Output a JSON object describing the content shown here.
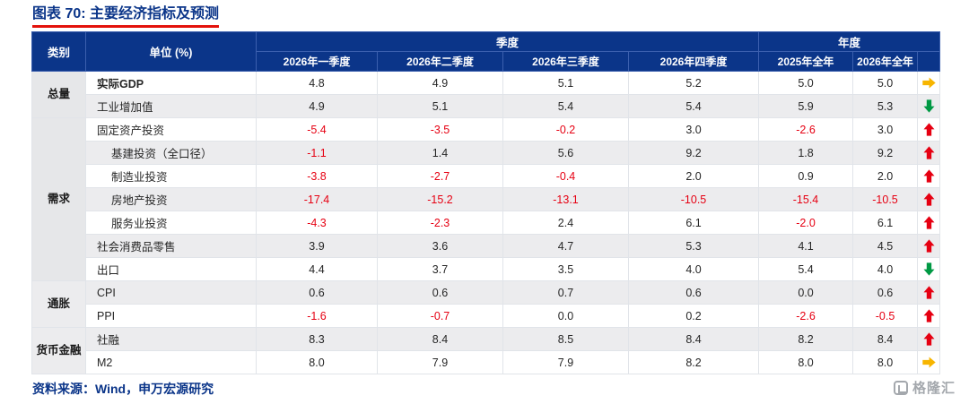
{
  "title": "图表 70: 主要经济指标及预测",
  "chart_data": {
    "type": "table",
    "header": {
      "category": "类别",
      "unit": "单位 (%)",
      "quarter_group": "季度",
      "annual_group": "年度",
      "columns": [
        "2026年一季度",
        "2026年二季度",
        "2026年三季度",
        "2026年四季度",
        "2025年全年",
        "2026年全年"
      ]
    },
    "groups": [
      {
        "label": "总量",
        "rows": [
          {
            "label": "实际GDP",
            "bold": true,
            "indent": false,
            "values": [
              "4.8",
              "4.9",
              "5.1",
              "5.2",
              "5.0",
              "5.0"
            ],
            "arrow": "right"
          },
          {
            "label": "工业增加值",
            "bold": false,
            "indent": false,
            "values": [
              "4.9",
              "5.1",
              "5.4",
              "5.4",
              "5.9",
              "5.3"
            ],
            "arrow": "down"
          }
        ]
      },
      {
        "label": "需求",
        "rows": [
          {
            "label": "固定资产投资",
            "bold": false,
            "indent": false,
            "values": [
              "-5.4",
              "-3.5",
              "-0.2",
              "3.0",
              "-2.6",
              "3.0"
            ],
            "arrow": "up"
          },
          {
            "label": "基建投资（全口径）",
            "bold": false,
            "indent": true,
            "values": [
              "-1.1",
              "1.4",
              "5.6",
              "9.2",
              "1.8",
              "9.2"
            ],
            "arrow": "up"
          },
          {
            "label": "制造业投资",
            "bold": false,
            "indent": true,
            "values": [
              "-3.8",
              "-2.7",
              "-0.4",
              "2.0",
              "0.9",
              "2.0"
            ],
            "arrow": "up"
          },
          {
            "label": "房地产投资",
            "bold": false,
            "indent": true,
            "values": [
              "-17.4",
              "-15.2",
              "-13.1",
              "-10.5",
              "-15.4",
              "-10.5"
            ],
            "arrow": "up"
          },
          {
            "label": "服务业投资",
            "bold": false,
            "indent": true,
            "values": [
              "-4.3",
              "-2.3",
              "2.4",
              "6.1",
              "-2.0",
              "6.1"
            ],
            "arrow": "up"
          },
          {
            "label": "社会消费品零售",
            "bold": false,
            "indent": false,
            "values": [
              "3.9",
              "3.6",
              "4.7",
              "5.3",
              "4.1",
              "4.5"
            ],
            "arrow": "up"
          },
          {
            "label": "出口",
            "bold": false,
            "indent": false,
            "values": [
              "4.4",
              "3.7",
              "3.5",
              "4.0",
              "5.4",
              "4.0"
            ],
            "arrow": "down"
          }
        ]
      },
      {
        "label": "通胀",
        "rows": [
          {
            "label": "CPI",
            "bold": false,
            "indent": false,
            "values": [
              "0.6",
              "0.6",
              "0.7",
              "0.6",
              "0.0",
              "0.6"
            ],
            "arrow": "up"
          },
          {
            "label": "PPI",
            "bold": false,
            "indent": false,
            "values": [
              "-1.6",
              "-0.7",
              "0.0",
              "0.2",
              "-2.6",
              "-0.5"
            ],
            "arrow": "up"
          }
        ]
      },
      {
        "label": "货币金融",
        "rows": [
          {
            "label": "社融",
            "bold": false,
            "indent": false,
            "values": [
              "8.3",
              "8.4",
              "8.5",
              "8.4",
              "8.2",
              "8.4"
            ],
            "arrow": "up"
          },
          {
            "label": "M2",
            "bold": false,
            "indent": false,
            "values": [
              "8.0",
              "7.9",
              "7.9",
              "8.2",
              "8.0",
              "8.0"
            ],
            "arrow": "right"
          }
        ]
      }
    ],
    "trend_legend": {
      "up": "red-up-arrow",
      "down": "green-down-arrow",
      "right": "yellow-right-arrow"
    }
  },
  "footer": {
    "source": "资料来源：Wind，申万宏源研究"
  },
  "watermark": {
    "text": "格隆汇"
  },
  "colors": {
    "navy": "#0b3589",
    "title_underline": "#e3120b",
    "negative": "#e60012",
    "arrow_up": "#e60012",
    "arrow_down": "#009944",
    "arrow_right": "#f7b500",
    "row_alt": "#ececee",
    "category_bg": "#e6e7e9"
  }
}
